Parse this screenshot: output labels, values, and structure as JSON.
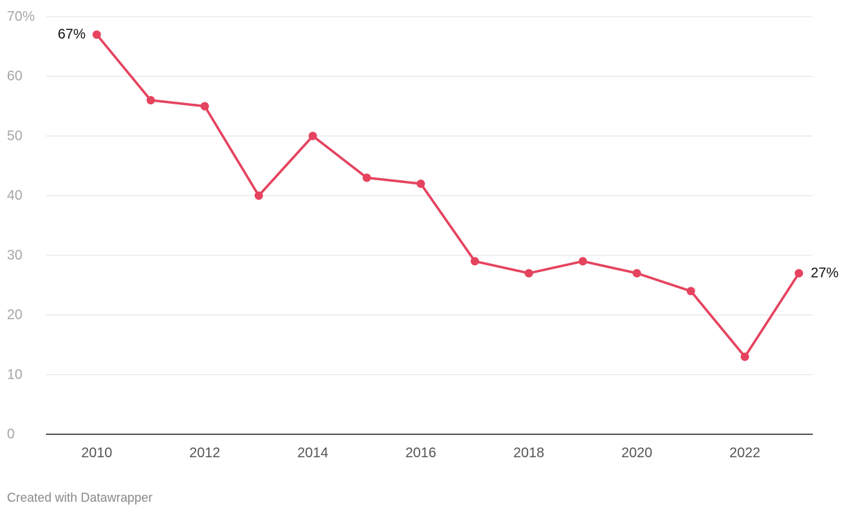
{
  "footer": {
    "credit": "Created with Datawrapper"
  },
  "chart_data": {
    "type": "line",
    "title": "",
    "xlabel": "",
    "ylabel": "",
    "x": [
      2010,
      2011,
      2012,
      2013,
      2014,
      2015,
      2016,
      2017,
      2018,
      2019,
      2020,
      2021,
      2022,
      2023
    ],
    "series": [
      {
        "values": [
          67,
          56,
          55,
          40,
          50,
          43,
          42,
          29,
          27,
          29,
          27,
          24,
          13,
          27
        ],
        "color": "#e5435e"
      }
    ],
    "xlim": [
      2010,
      2023
    ],
    "ylim": [
      0,
      70
    ],
    "y_ticks": [
      0,
      10,
      20,
      30,
      40,
      50,
      60,
      70
    ],
    "y_tick_labels": [
      "0",
      "10",
      "20",
      "30",
      "40",
      "50",
      "60",
      "70%"
    ],
    "x_ticks": [
      2010,
      2012,
      2014,
      2016,
      2018,
      2020,
      2022
    ],
    "x_tick_labels": [
      "2010",
      "2012",
      "2014",
      "2016",
      "2018",
      "2020",
      "2022"
    ],
    "annotations": [
      {
        "x": 2010,
        "value": 67,
        "text": "67%",
        "side": "left"
      },
      {
        "x": 2023,
        "value": 27,
        "text": "27%",
        "side": "right"
      }
    ],
    "grid": true,
    "legend": "none"
  }
}
